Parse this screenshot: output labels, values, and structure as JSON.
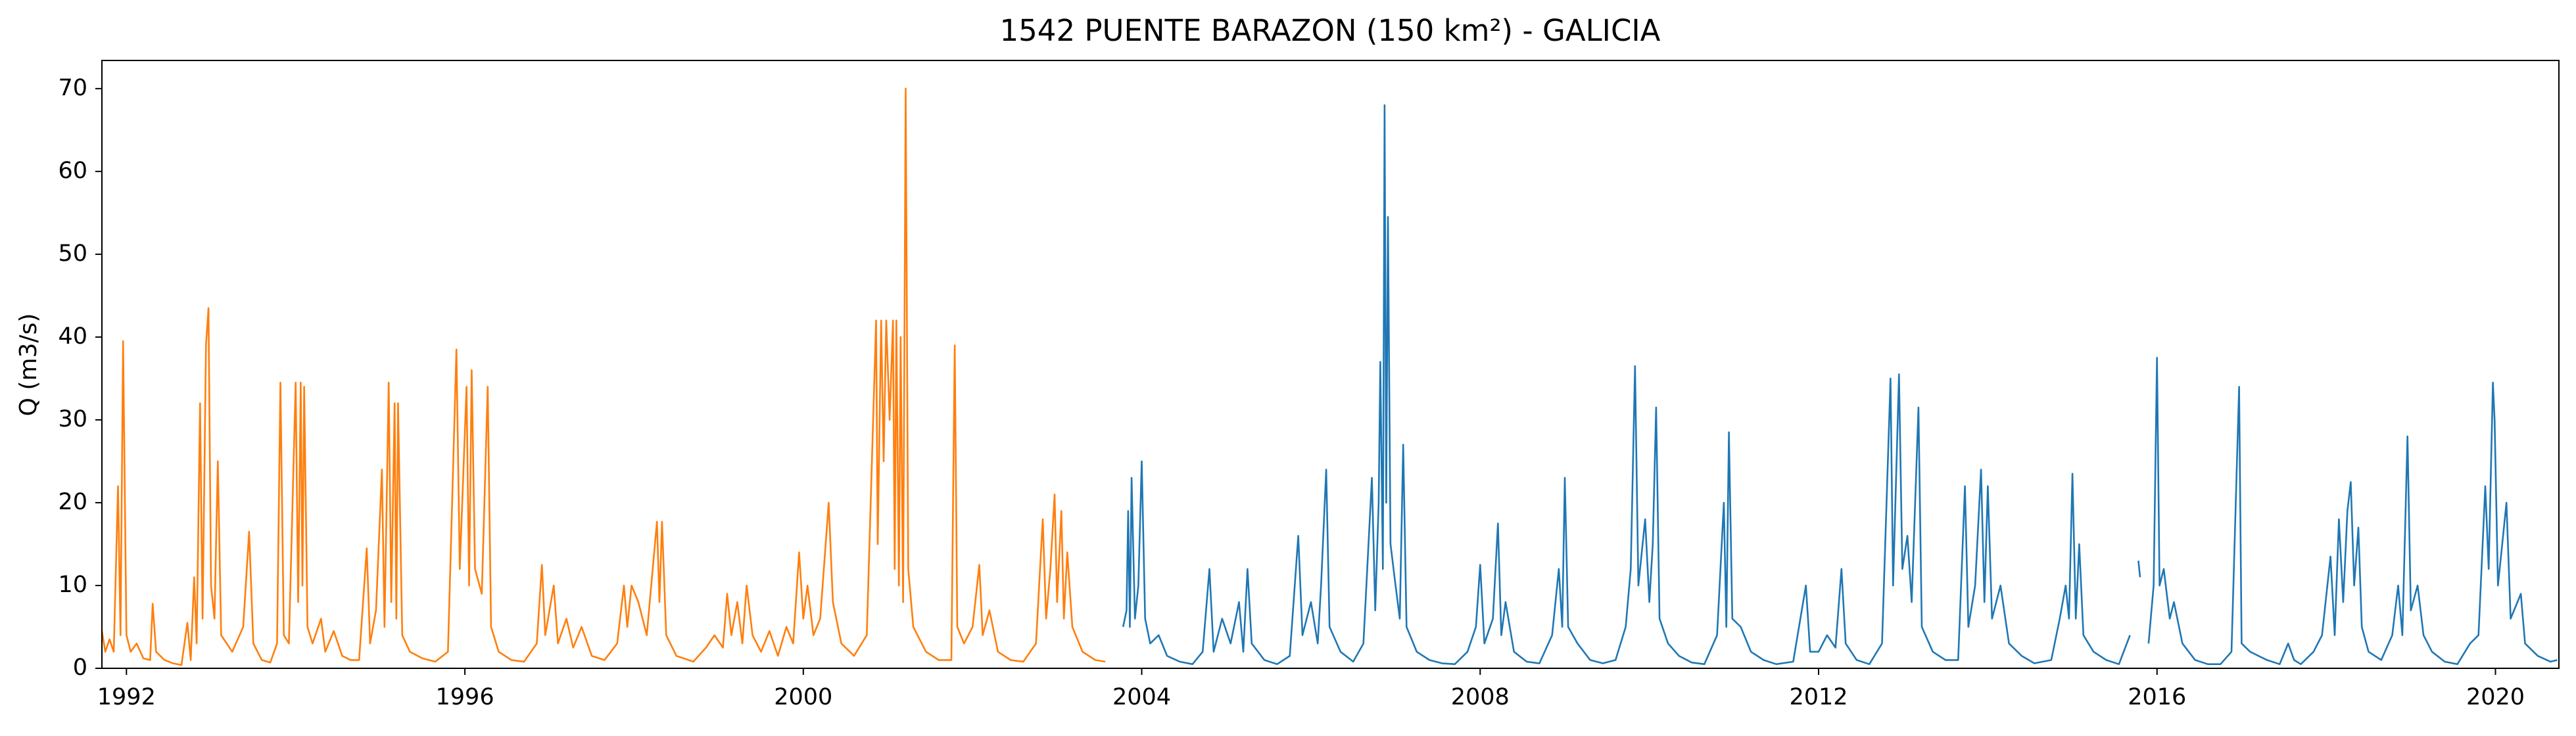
{
  "chart_data": {
    "type": "line",
    "title": "1542 PUENTE BARAZON (150 km²) - GALICIA",
    "y_label": "Q (m3/s)",
    "xlim": [
      1991.71,
      2020.75
    ],
    "xticks": [
      1992,
      1996,
      2000,
      2004,
      2008,
      2012,
      2016,
      2020
    ],
    "ylim": [
      0,
      73.4
    ],
    "yticks": [
      0,
      10,
      20,
      30,
      40,
      50,
      60,
      70
    ],
    "grid": false,
    "series": [
      {
        "color": "#ff7f0e",
        "x": [
          1991.71,
          1991.75,
          1991.8,
          1991.85,
          1991.9,
          1991.93,
          1991.96,
          1992.0,
          1992.05,
          1992.12,
          1992.2,
          1992.28,
          1992.31,
          1992.35,
          1992.45,
          1992.55,
          1992.65,
          1992.72,
          1992.76,
          1992.8,
          1992.83,
          1992.87,
          1992.9,
          1992.94,
          1992.97,
          1993.0,
          1993.04,
          1993.08,
          1993.12,
          1993.25,
          1993.38,
          1993.45,
          1993.5,
          1993.6,
          1993.7,
          1993.78,
          1993.82,
          1993.86,
          1993.92,
          1994.0,
          1994.03,
          1994.06,
          1994.08,
          1994.1,
          1994.14,
          1994.2,
          1994.3,
          1994.35,
          1994.45,
          1994.55,
          1994.65,
          1994.75,
          1994.84,
          1994.88,
          1994.95,
          1995.02,
          1995.05,
          1995.1,
          1995.13,
          1995.17,
          1995.19,
          1995.21,
          1995.26,
          1995.35,
          1995.5,
          1995.65,
          1995.8,
          1995.9,
          1995.94,
          1996.02,
          1996.05,
          1996.08,
          1996.12,
          1996.2,
          1996.27,
          1996.31,
          1996.4,
          1996.55,
          1996.7,
          1996.85,
          1996.91,
          1996.95,
          1997.05,
          1997.1,
          1997.2,
          1997.28,
          1997.38,
          1997.5,
          1997.65,
          1997.8,
          1997.88,
          1997.92,
          1997.97,
          1998.05,
          1998.15,
          1998.27,
          1998.3,
          1998.33,
          1998.38,
          1998.5,
          1998.7,
          1998.85,
          1998.95,
          1999.05,
          1999.1,
          1999.15,
          1999.22,
          1999.28,
          1999.33,
          1999.4,
          1999.5,
          1999.6,
          1999.7,
          1999.8,
          1999.88,
          1999.95,
          2000.0,
          2000.05,
          2000.12,
          2000.2,
          2000.3,
          2000.35,
          2000.45,
          2000.6,
          2000.75,
          2000.86,
          2000.88,
          2000.92,
          2000.95,
          2000.98,
          2001.02,
          2001.06,
          2001.08,
          2001.1,
          2001.13,
          2001.15,
          2001.18,
          2001.21,
          2001.24,
          2001.3,
          2001.45,
          2001.6,
          2001.75,
          2001.79,
          2001.82,
          2001.9,
          2002.0,
          2002.08,
          2002.12,
          2002.2,
          2002.3,
          2002.45,
          2002.6,
          2002.75,
          2002.83,
          2002.87,
          2002.92,
          2002.97,
          2003.0,
          2003.05,
          2003.08,
          2003.12,
          2003.18,
          2003.3,
          2003.45,
          2003.57
        ],
        "values": [
          4.5,
          2,
          3.5,
          2,
          22,
          4,
          39.5,
          4,
          2,
          3,
          1.2,
          1,
          7.8,
          2,
          1,
          0.6,
          0.4,
          5.5,
          1,
          11,
          3,
          32,
          6,
          39,
          43.5,
          10,
          6,
          25,
          4,
          2,
          5,
          16.5,
          3,
          1,
          0.7,
          3,
          34.5,
          4,
          3,
          34.5,
          8,
          34.5,
          10,
          34,
          5,
          3,
          6,
          2,
          4.5,
          1.5,
          1,
          1,
          14.5,
          3,
          7,
          24,
          5,
          34.5,
          8,
          32,
          6,
          32,
          4,
          2,
          1.2,
          0.8,
          2,
          38.5,
          12,
          34,
          10,
          36,
          12,
          9,
          34,
          5,
          2,
          1,
          0.8,
          3,
          12.5,
          4,
          10,
          3,
          6,
          2.5,
          5,
          1.5,
          1,
          3,
          10,
          5,
          10,
          8,
          4,
          17.7,
          8,
          17.7,
          4,
          1.5,
          0.8,
          2.5,
          4,
          2.5,
          9,
          4,
          8,
          3,
          10,
          4,
          2,
          4.5,
          1.5,
          5,
          3,
          14,
          6,
          10,
          4,
          6,
          20,
          8,
          3,
          1.5,
          4,
          42,
          15,
          42,
          25,
          42,
          30,
          42,
          12,
          42,
          10,
          40,
          8,
          70,
          12,
          5,
          2,
          1,
          1,
          39,
          5,
          3,
          5,
          12.5,
          4,
          7,
          2,
          1,
          0.8,
          3,
          18,
          6,
          12,
          21,
          8,
          19,
          6,
          14,
          5,
          2,
          1,
          0.8
        ]
      },
      {
        "color": "#1f77b4",
        "x": [
          2003.78,
          2003.82,
          2003.84,
          2003.86,
          2003.88,
          2003.92,
          2003.96,
          2004.0,
          2004.04,
          2004.1,
          2004.2,
          2004.3,
          2004.45,
          2004.6,
          2004.72,
          2004.8,
          2004.85,
          2004.95,
          2005.05,
          2005.15,
          2005.2,
          2005.25,
          2005.3,
          2005.45,
          2005.6,
          2005.75,
          2005.85,
          2005.9,
          2006.0,
          2006.08,
          2006.12,
          2006.18,
          2006.22,
          2006.35,
          2006.5,
          2006.62,
          2006.72,
          2006.76,
          2006.8,
          2006.82,
          2006.85,
          2006.87,
          2006.89,
          2006.91,
          2006.94,
          2007.0,
          2007.05,
          2007.09,
          2007.13,
          2007.25,
          2007.4,
          2007.55,
          2007.7,
          2007.85,
          2007.95,
          2008.0,
          2008.05,
          2008.15,
          2008.21,
          2008.25,
          2008.3,
          2008.4,
          2008.55,
          2008.7,
          2008.85,
          2008.93,
          2008.97,
          2009.0,
          2009.04,
          2009.15,
          2009.3,
          2009.45,
          2009.6,
          2009.72,
          2009.78,
          2009.83,
          2009.87,
          2009.95,
          2010.0,
          2010.04,
          2010.08,
          2010.12,
          2010.22,
          2010.35,
          2010.5,
          2010.65,
          2010.8,
          2010.88,
          2010.91,
          2010.94,
          2010.98,
          2011.08,
          2011.2,
          2011.35,
          2011.5,
          2011.7,
          2011.85,
          2011.9,
          2012.0,
          2012.1,
          2012.2,
          2012.27,
          2012.32,
          2012.45,
          2012.6,
          2012.75,
          2012.85,
          2012.88,
          2012.95,
          2012.99,
          2013.05,
          2013.1,
          2013.18,
          2013.22,
          2013.35,
          2013.5,
          2013.65,
          2013.73,
          2013.77,
          2013.85,
          2013.92,
          2013.96,
          2014.0,
          2014.05,
          2014.15,
          2014.25,
          2014.4,
          2014.55,
          2014.75,
          2014.85,
          2014.92,
          2014.96,
          2015.0,
          2015.04,
          2015.08,
          2015.13,
          2015.25,
          2015.4,
          2015.55,
          2015.68,
          2015.74,
          2015.78,
          2015.8,
          2015.84,
          2015.9,
          2015.96,
          2016.0,
          2016.03,
          2016.08,
          2016.15,
          2016.2,
          2016.3,
          2016.45,
          2016.6,
          2016.75,
          2016.88,
          2016.97,
          2017.0,
          2017.1,
          2017.3,
          2017.45,
          2017.55,
          2017.62,
          2017.7,
          2017.85,
          2017.95,
          2018.05,
          2018.1,
          2018.15,
          2018.2,
          2018.25,
          2018.29,
          2018.33,
          2018.38,
          2018.42,
          2018.5,
          2018.65,
          2018.78,
          2018.85,
          2018.9,
          2018.96,
          2019.0,
          2019.08,
          2019.15,
          2019.25,
          2019.4,
          2019.55,
          2019.7,
          2019.8,
          2019.88,
          2019.92,
          2019.97,
          2019.99,
          2020.03,
          2020.08,
          2020.13,
          2020.18,
          2020.3,
          2020.35,
          2020.5,
          2020.65,
          2020.73
        ],
        "values": [
          5,
          7,
          19,
          5,
          23,
          6,
          10,
          25,
          6,
          3,
          4,
          1.5,
          0.8,
          0.5,
          2,
          12,
          2,
          6,
          3,
          8,
          2,
          12,
          3,
          1,
          0.5,
          1.5,
          16,
          4,
          8,
          3,
          10,
          24,
          5,
          2,
          0.8,
          3,
          23,
          7,
          20,
          37,
          12,
          68,
          20,
          54.5,
          15,
          10,
          6,
          27,
          5,
          2,
          1,
          0.6,
          0.5,
          2,
          5,
          12.5,
          3,
          6,
          17.5,
          4,
          8,
          2,
          0.8,
          0.6,
          4,
          12,
          5,
          23,
          5,
          3,
          1,
          0.6,
          1,
          5,
          12,
          36.5,
          10,
          18,
          8,
          15,
          31.5,
          6,
          3,
          1.5,
          0.7,
          0.5,
          4,
          20,
          5,
          28.5,
          6,
          5,
          2,
          1,
          0.5,
          0.8,
          10,
          2,
          2,
          4,
          2.5,
          12,
          3,
          1,
          0.5,
          3,
          35,
          10,
          35.5,
          12,
          16,
          8,
          31.5,
          5,
          2,
          1,
          1,
          22,
          5,
          10,
          24,
          8,
          22,
          6,
          10,
          3,
          1.5,
          0.6,
          1,
          6,
          10,
          6,
          23.5,
          6,
          15,
          4,
          2,
          1,
          0.5,
          4,
          null,
          13,
          11,
          null,
          3,
          10,
          37.5,
          10,
          12,
          6,
          8,
          3,
          1,
          0.5,
          0.5,
          2,
          34,
          3,
          2,
          1,
          0.5,
          3,
          1,
          0.5,
          2,
          4,
          13.5,
          4,
          18,
          8,
          19,
          22.5,
          10,
          17,
          5,
          2,
          1,
          4,
          10,
          4,
          28,
          7,
          10,
          4,
          2,
          0.8,
          0.5,
          3,
          4,
          22,
          12,
          34.5,
          30,
          10,
          15,
          20,
          6,
          9,
          3,
          1.5,
          0.8,
          1
        ]
      }
    ]
  }
}
